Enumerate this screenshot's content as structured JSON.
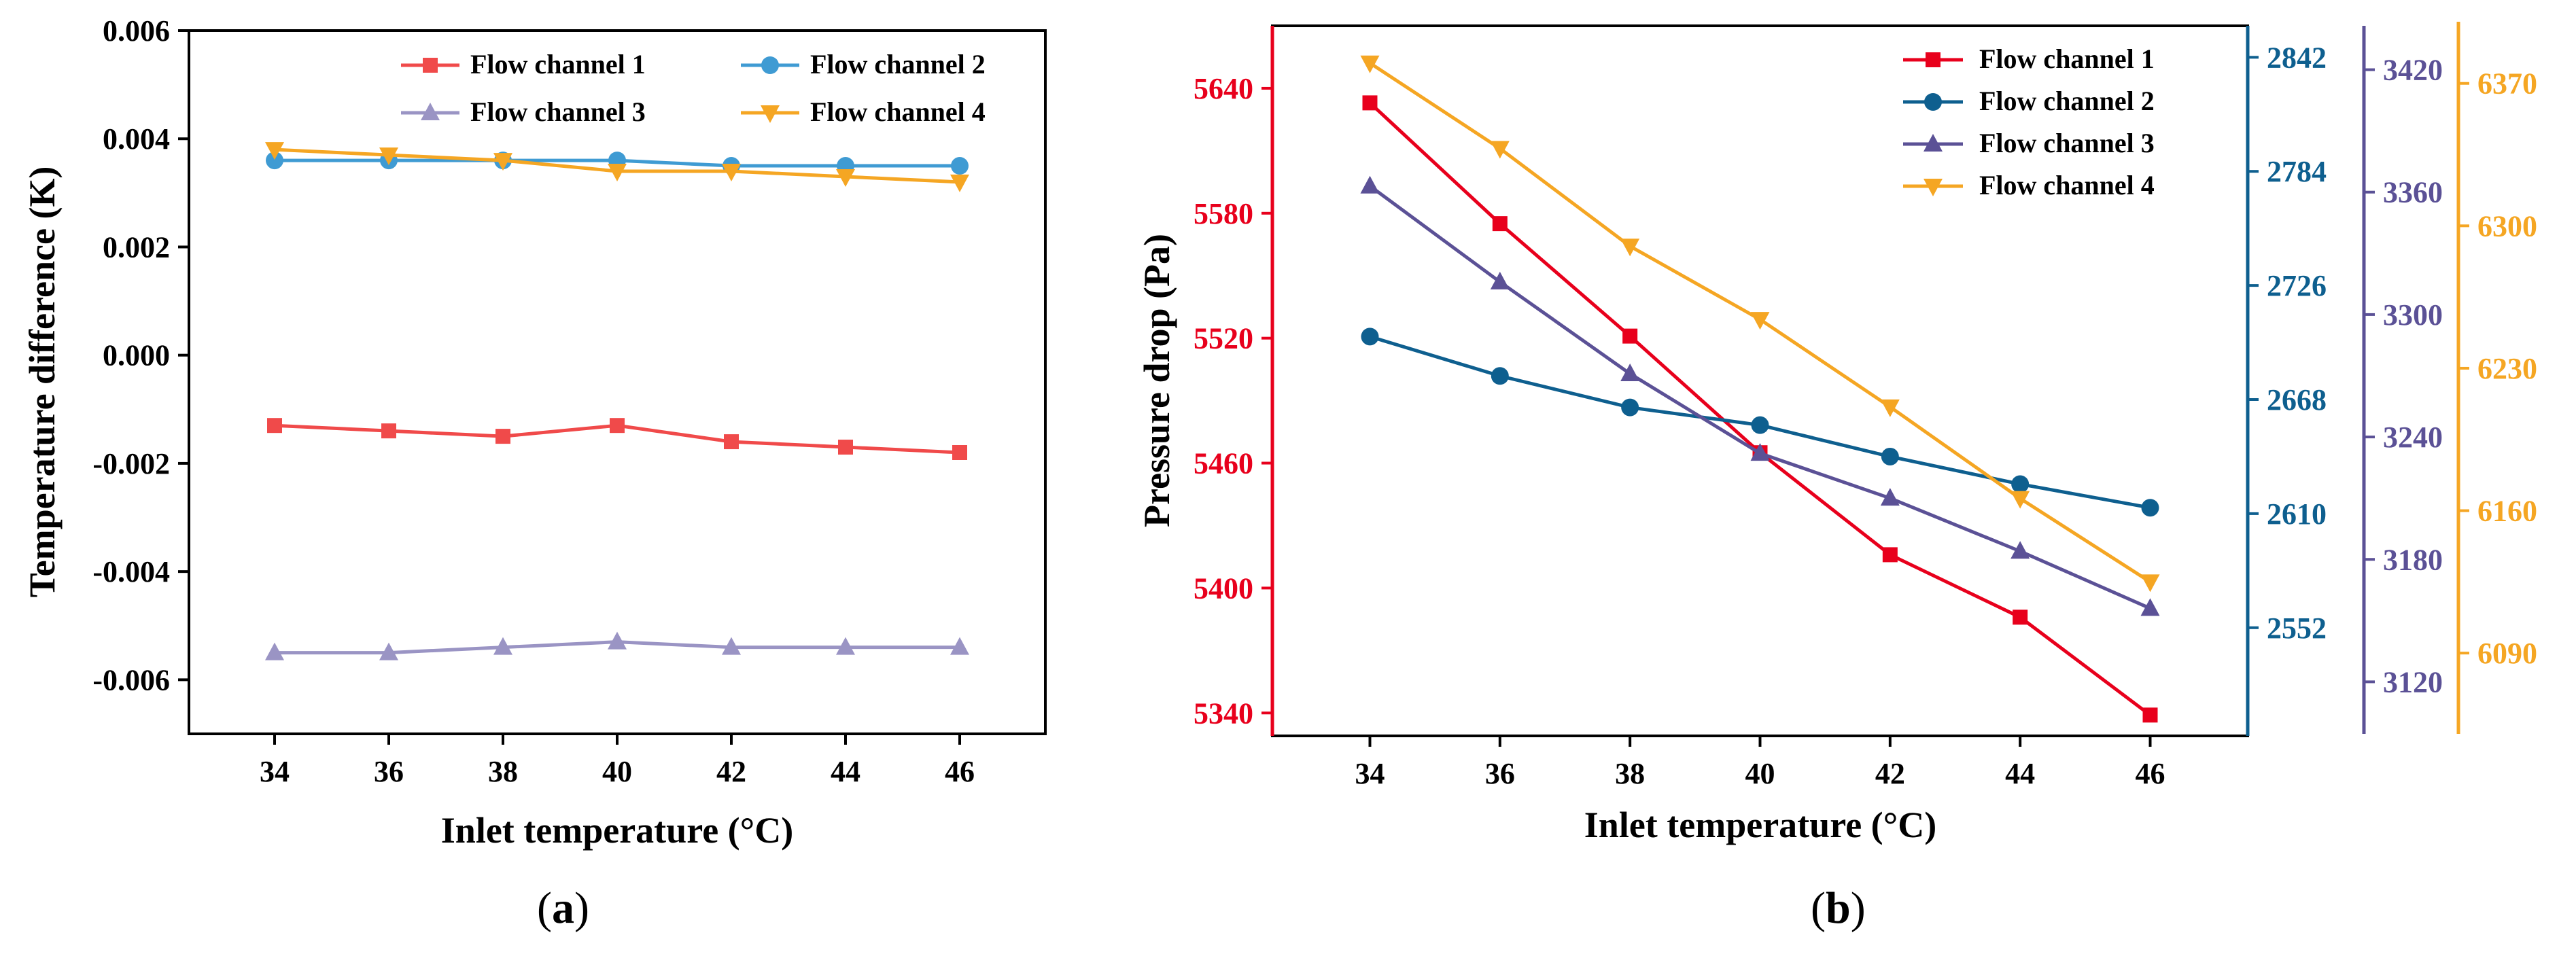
{
  "panels": [
    {
      "caption_letter": "a",
      "xlabel": "Inlet temperature (°C)",
      "ylabel": "Temperature difference (K)"
    },
    {
      "caption_letter": "b",
      "xlabel": "Inlet temperature (°C)",
      "ylabel": "Pressure drop (Pa)"
    }
  ],
  "chart_data": [
    {
      "type": "line",
      "xlabel": "Inlet temperature (°C)",
      "ylabel": "Temperature difference (K)",
      "x": [
        34,
        36,
        38,
        40,
        42,
        44,
        46
      ],
      "x_ticks": [
        "34",
        "36",
        "38",
        "40",
        "42",
        "44",
        "46"
      ],
      "xlim": [
        32.5,
        47.5
      ],
      "ylim": [
        -0.007,
        0.006
      ],
      "y_ticks": [
        0.006,
        0.004,
        0.002,
        0.0,
        -0.002,
        -0.004,
        -0.006
      ],
      "y_tick_labels": [
        "0.006",
        "0.004",
        "0.002",
        "0.000",
        "-0.002",
        "-0.004",
        "-0.006"
      ],
      "legend_position": "top-right",
      "series": [
        {
          "name": "Flow channel 1",
          "color": "#f04a4a",
          "marker": "square",
          "values": [
            -0.0013,
            -0.0014,
            -0.0015,
            -0.0013,
            -0.0016,
            -0.0017,
            -0.0018
          ]
        },
        {
          "name": "Flow channel 2",
          "color": "#3f9bd3",
          "marker": "circle",
          "values": [
            0.0036,
            0.0036,
            0.0036,
            0.0036,
            0.0035,
            0.0035,
            0.0035
          ]
        },
        {
          "name": "Flow channel 3",
          "color": "#9a94c4",
          "marker": "triangle-up",
          "values": [
            -0.0055,
            -0.0055,
            -0.0054,
            -0.0053,
            -0.0054,
            -0.0054,
            -0.0054
          ]
        },
        {
          "name": "Flow channel 4",
          "color": "#f5a623",
          "marker": "triangle-down",
          "values": [
            0.0038,
            0.0037,
            0.0036,
            0.0034,
            0.0034,
            0.0033,
            0.0032
          ]
        }
      ]
    },
    {
      "type": "line",
      "xlabel": "Inlet temperature (°C)",
      "ylabel": "Pressure drop (Pa)",
      "x": [
        34,
        36,
        38,
        40,
        42,
        44,
        46
      ],
      "x_ticks": [
        "34",
        "36",
        "38",
        "40",
        "42",
        "44",
        "46"
      ],
      "xlim": [
        32.5,
        47.5
      ],
      "legend_position": "top-right",
      "axes": [
        {
          "id": "y1",
          "side": "left",
          "color": "#e8001c",
          "ylim": [
            5329,
            5670
          ],
          "ticks": [
            5340,
            5400,
            5460,
            5520,
            5580,
            5640
          ],
          "tick_labels": [
            "5340",
            "5400",
            "5460",
            "5520",
            "5580",
            "5640"
          ]
        },
        {
          "id": "y2",
          "side": "right",
          "color": "#0e5f8f",
          "ylim": [
            2497,
            2858
          ],
          "ticks": [
            2552,
            2610,
            2668,
            2726,
            2784,
            2842
          ],
          "tick_labels": [
            "2552",
            "2610",
            "2668",
            "2726",
            "2784",
            "2842"
          ]
        },
        {
          "id": "y3",
          "side": "right-offset",
          "color": "#5b5196",
          "ylim": [
            3093.5,
            3441.5
          ],
          "ticks": [
            3120,
            3180,
            3240,
            3300,
            3360,
            3420
          ],
          "tick_labels": [
            "3120",
            "3180",
            "3240",
            "3300",
            "3360",
            "3420"
          ]
        },
        {
          "id": "y4",
          "side": "right-offset-2",
          "color": "#f5a623",
          "ylim": [
            6049.3,
            6398.3
          ],
          "ticks": [
            6090,
            6160,
            6230,
            6300,
            6370
          ],
          "tick_labels": [
            "6090",
            "6160",
            "6230",
            "6300",
            "6370"
          ]
        }
      ],
      "series": [
        {
          "name": "Flow channel 1",
          "axis": "y1",
          "color": "#e8001c",
          "marker": "square",
          "values": [
            5633,
            5575,
            5521,
            5465,
            5416,
            5386,
            5339
          ]
        },
        {
          "name": "Flow channel 2",
          "axis": "y2",
          "color": "#0e5f8f",
          "marker": "circle",
          "values": [
            2700,
            2680,
            2664,
            2655,
            2639,
            2625,
            2613
          ]
        },
        {
          "name": "Flow channel 3",
          "axis": "y3",
          "color": "#5b5196",
          "marker": "triangle-up",
          "values": [
            3363,
            3316,
            3271,
            3232,
            3210,
            3184,
            3156
          ]
        },
        {
          "name": "Flow channel 4",
          "axis": "y4",
          "color": "#f5a623",
          "marker": "triangle-down",
          "values": [
            6380,
            6338,
            6290,
            6254,
            6211,
            6166,
            6125
          ]
        }
      ]
    }
  ]
}
